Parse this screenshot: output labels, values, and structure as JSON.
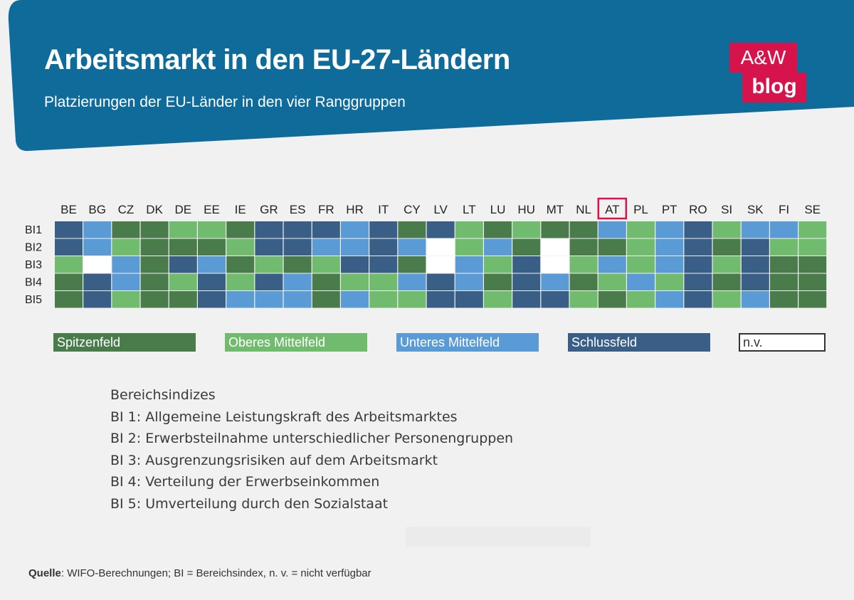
{
  "header": {
    "title": "Arbeitsmarkt in den EU-27-Ländern",
    "subtitle": "Platzierungen der EU-Länder in den vier Ranggruppen",
    "band_color": "#0f6c9a"
  },
  "logo": {
    "line1": "A&W",
    "line2": "blog",
    "color": "#d6134b"
  },
  "chart_data": {
    "type": "heatmap",
    "columns": [
      "BE",
      "BG",
      "CZ",
      "DK",
      "DE",
      "EE",
      "IE",
      "GR",
      "ES",
      "FR",
      "HR",
      "IT",
      "CY",
      "LV",
      "LT",
      "LU",
      "HU",
      "MT",
      "NL",
      "AT",
      "PL",
      "PT",
      "RO",
      "SI",
      "SK",
      "FI",
      "SE"
    ],
    "rows": [
      "BI1",
      "BI2",
      "BI3",
      "BI4",
      "BI5"
    ],
    "highlighted_column": "AT",
    "categories": [
      "Spitzenfeld",
      "Oberes Mittelfeld",
      "Unteres Mittelfeld",
      "Schlussfeld",
      "n.v."
    ],
    "colors": {
      "Spitzenfeld": "#4a7c4b",
      "Oberes Mittelfeld": "#71bb6e",
      "Unteres Mittelfeld": "#5b9bd5",
      "Schlussfeld": "#3a5f86",
      "n.v.": "#ffffff"
    },
    "values": [
      [
        "Schlussfeld",
        "Unteres Mittelfeld",
        "Spitzenfeld",
        "Spitzenfeld",
        "Oberes Mittelfeld",
        "Oberes Mittelfeld",
        "Spitzenfeld",
        "Schlussfeld",
        "Schlussfeld",
        "Schlussfeld",
        "Unteres Mittelfeld",
        "Schlussfeld",
        "Spitzenfeld",
        "Schlussfeld",
        "Oberes Mittelfeld",
        "Spitzenfeld",
        "Oberes Mittelfeld",
        "Spitzenfeld",
        "Spitzenfeld",
        "Unteres Mittelfeld",
        "Oberes Mittelfeld",
        "Unteres Mittelfeld",
        "Schlussfeld",
        "Oberes Mittelfeld",
        "Unteres Mittelfeld",
        "Unteres Mittelfeld",
        "Oberes Mittelfeld"
      ],
      [
        "Schlussfeld",
        "Unteres Mittelfeld",
        "Oberes Mittelfeld",
        "Spitzenfeld",
        "Spitzenfeld",
        "Spitzenfeld",
        "Oberes Mittelfeld",
        "Schlussfeld",
        "Schlussfeld",
        "Unteres Mittelfeld",
        "Unteres Mittelfeld",
        "Schlussfeld",
        "Unteres Mittelfeld",
        "n.v.",
        "Oberes Mittelfeld",
        "Unteres Mittelfeld",
        "Spitzenfeld",
        "n.v.",
        "Spitzenfeld",
        "Spitzenfeld",
        "Oberes Mittelfeld",
        "Unteres Mittelfeld",
        "Schlussfeld",
        "Spitzenfeld",
        "Schlussfeld",
        "Oberes Mittelfeld",
        "Oberes Mittelfeld"
      ],
      [
        "Oberes Mittelfeld",
        "n.v.",
        "Unteres Mittelfeld",
        "Spitzenfeld",
        "Schlussfeld",
        "Unteres Mittelfeld",
        "Spitzenfeld",
        "Oberes Mittelfeld",
        "Spitzenfeld",
        "Oberes Mittelfeld",
        "Schlussfeld",
        "Schlussfeld",
        "Spitzenfeld",
        "n.v.",
        "Unteres Mittelfeld",
        "Oberes Mittelfeld",
        "Schlussfeld",
        "n.v.",
        "Oberes Mittelfeld",
        "Unteres Mittelfeld",
        "Oberes Mittelfeld",
        "Unteres Mittelfeld",
        "Schlussfeld",
        "Oberes Mittelfeld",
        "Schlussfeld",
        "Spitzenfeld",
        "Spitzenfeld"
      ],
      [
        "Spitzenfeld",
        "Schlussfeld",
        "Unteres Mittelfeld",
        "Spitzenfeld",
        "Oberes Mittelfeld",
        "Schlussfeld",
        "Oberes Mittelfeld",
        "Schlussfeld",
        "Unteres Mittelfeld",
        "Spitzenfeld",
        "Oberes Mittelfeld",
        "Oberes Mittelfeld",
        "Unteres Mittelfeld",
        "Schlussfeld",
        "Unteres Mittelfeld",
        "Spitzenfeld",
        "Schlussfeld",
        "Unteres Mittelfeld",
        "Spitzenfeld",
        "Oberes Mittelfeld",
        "Unteres Mittelfeld",
        "Oberes Mittelfeld",
        "Schlussfeld",
        "Spitzenfeld",
        "Schlussfeld",
        "Spitzenfeld",
        "Spitzenfeld"
      ],
      [
        "Spitzenfeld",
        "Schlussfeld",
        "Oberes Mittelfeld",
        "Spitzenfeld",
        "Spitzenfeld",
        "Schlussfeld",
        "Unteres Mittelfeld",
        "Unteres Mittelfeld",
        "Unteres Mittelfeld",
        "Spitzenfeld",
        "Unteres Mittelfeld",
        "Oberes Mittelfeld",
        "Oberes Mittelfeld",
        "Schlussfeld",
        "Schlussfeld",
        "Oberes Mittelfeld",
        "Schlussfeld",
        "Schlussfeld",
        "Oberes Mittelfeld",
        "Spitzenfeld",
        "Oberes Mittelfeld",
        "Unteres Mittelfeld",
        "Schlussfeld",
        "Oberes Mittelfeld",
        "Unteres Mittelfeld",
        "Spitzenfeld",
        "Spitzenfeld"
      ]
    ]
  },
  "legend": {
    "items": [
      "Spitzenfeld",
      "Oberes Mittelfeld",
      "Unteres Mittelfeld",
      "Schlussfeld"
    ],
    "nv_label": "n.v."
  },
  "definitions": {
    "heading": "Bereichsindizes",
    "lines": [
      "BI 1: Allgemeine Leistungskraft des Arbeitsmarktes",
      "BI 2: Erwerbsteilnahme unterschiedlicher Personengruppen",
      "BI 3: Ausgrenzungsrisiken auf dem Arbeitsmarkt",
      "BI 4: Verteilung der Erwerbseinkommen",
      "BI 5: Umverteilung durch den Sozialstaat"
    ]
  },
  "source": {
    "label": "Quelle",
    "text": ": WIFO-Berechnungen; BI = Bereichsindex, n. v. = nicht verfügbar"
  },
  "highlight_color": "#d6134b"
}
